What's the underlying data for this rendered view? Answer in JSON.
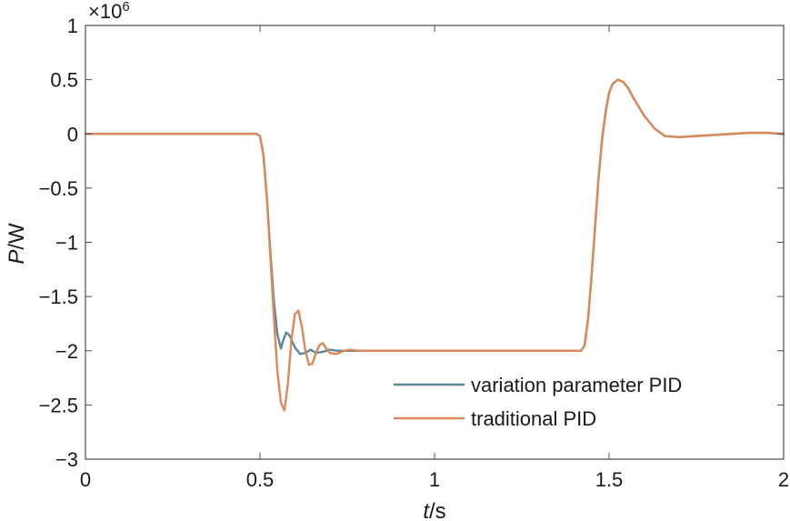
{
  "chart_data": {
    "type": "line",
    "xlabel_italic": "t",
    "xlabel_unit": "/s",
    "ylabel_italic": "P",
    "ylabel_unit": "/W",
    "y_multiplier": "×10",
    "y_multiplier_exp": "6",
    "xlim": [
      0,
      2
    ],
    "ylim": [
      -3,
      1
    ],
    "x_ticks": [
      "0",
      "0.5",
      "1",
      "1.5",
      "2"
    ],
    "x_tick_values": [
      0,
      0.5,
      1,
      1.5,
      2
    ],
    "y_ticks": [
      "1",
      "0.5",
      "0",
      "−0.5",
      "−1",
      "−1.5",
      "−2",
      "−2.5",
      "−3"
    ],
    "y_tick_values": [
      1,
      0.5,
      0,
      -0.5,
      -1,
      -1.5,
      -2,
      -2.5,
      -3
    ],
    "grid": false,
    "legend_position": "bottom-right",
    "series": [
      {
        "name": "variation parameter PID",
        "color": "#5b8799",
        "x": [
          0,
          0.49,
          0.5,
          0.51,
          0.52,
          0.53,
          0.54,
          0.55,
          0.56,
          0.565,
          0.575,
          0.585,
          0.6,
          0.615,
          0.63,
          0.645,
          0.66,
          0.68,
          0.7,
          0.72,
          0.75,
          0.8,
          1.0,
          1.2,
          1.42,
          1.43,
          1.44,
          1.45,
          1.46,
          1.47,
          1.48,
          1.49,
          1.5,
          1.51,
          1.525,
          1.54,
          1.555,
          1.57,
          1.6,
          1.63,
          1.66,
          1.7,
          1.75,
          1.8,
          1.85,
          1.9,
          1.95,
          2.0
        ],
        "y": [
          0,
          0,
          -0.02,
          -0.2,
          -0.6,
          -1.1,
          -1.55,
          -1.85,
          -1.98,
          -1.92,
          -1.83,
          -1.86,
          -1.97,
          -2.03,
          -2.02,
          -1.99,
          -2.02,
          -2.01,
          -1.99,
          -2.0,
          -2.0,
          -2.0,
          -2.0,
          -2.0,
          -2.0,
          -1.95,
          -1.7,
          -1.3,
          -0.85,
          -0.4,
          -0.05,
          0.2,
          0.38,
          0.46,
          0.5,
          0.48,
          0.42,
          0.33,
          0.17,
          0.05,
          -0.02,
          -0.03,
          -0.02,
          -0.01,
          0.0,
          0.01,
          0.01,
          0.0
        ]
      },
      {
        "name": "traditional PID",
        "color": "#d9895a",
        "x": [
          0,
          0.49,
          0.5,
          0.51,
          0.52,
          0.53,
          0.54,
          0.55,
          0.56,
          0.57,
          0.58,
          0.59,
          0.6,
          0.61,
          0.62,
          0.63,
          0.64,
          0.65,
          0.66,
          0.67,
          0.68,
          0.69,
          0.7,
          0.72,
          0.74,
          0.76,
          0.78,
          0.8,
          0.85,
          1.0,
          1.2,
          1.42,
          1.43,
          1.44,
          1.45,
          1.46,
          1.47,
          1.48,
          1.49,
          1.5,
          1.51,
          1.525,
          1.54,
          1.555,
          1.57,
          1.6,
          1.63,
          1.66,
          1.7,
          1.75,
          1.8,
          1.85,
          1.9,
          1.95,
          2.0
        ],
        "y": [
          0,
          0,
          -0.02,
          -0.2,
          -0.6,
          -1.15,
          -1.7,
          -2.2,
          -2.48,
          -2.55,
          -2.3,
          -1.9,
          -1.66,
          -1.63,
          -1.78,
          -2.0,
          -2.13,
          -2.12,
          -2.02,
          -1.95,
          -1.93,
          -1.98,
          -2.02,
          -2.03,
          -2.0,
          -1.99,
          -2.0,
          -2.0,
          -2.0,
          -2.0,
          -2.0,
          -2.0,
          -1.95,
          -1.7,
          -1.3,
          -0.85,
          -0.4,
          -0.05,
          0.2,
          0.38,
          0.46,
          0.5,
          0.48,
          0.42,
          0.33,
          0.17,
          0.05,
          -0.02,
          -0.03,
          -0.02,
          -0.01,
          0.0,
          0.01,
          0.01,
          0.0
        ]
      }
    ]
  }
}
